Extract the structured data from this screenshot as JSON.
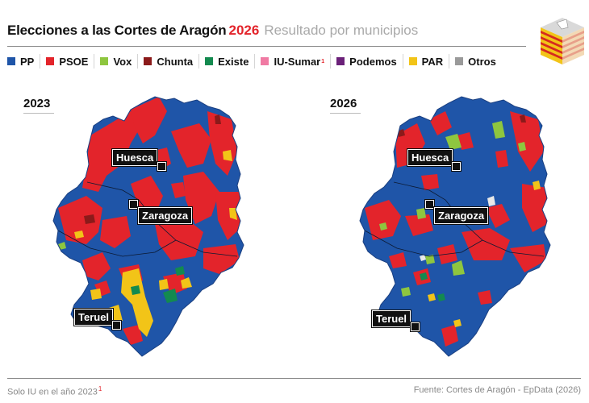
{
  "header": {
    "title": "Elecciones a las Cortes de Aragón",
    "title_year": "2026",
    "subtitle": "Resultado por municipios"
  },
  "legend": [
    {
      "label": "PP",
      "color": "#1f55a8"
    },
    {
      "label": "PSOE",
      "color": "#e3242b"
    },
    {
      "label": "Vox",
      "color": "#8ec63f"
    },
    {
      "label": "Chunta",
      "color": "#8b1a1a"
    },
    {
      "label": "Existe",
      "color": "#138a4f"
    },
    {
      "label": "IU-Sumar",
      "color": "#f07aa3",
      "footnote_mark": "1"
    },
    {
      "label": "Podemos",
      "color": "#6b2179"
    },
    {
      "label": "PAR",
      "color": "#f2c418"
    },
    {
      "label": "Otros",
      "color": "#9a9a9a"
    }
  ],
  "maps": [
    {
      "year": "2023",
      "cities": {
        "huesca": "Huesca",
        "zaragoza": "Zaragoza",
        "teruel": "Teruel"
      }
    },
    {
      "year": "2026",
      "cities": {
        "huesca": "Huesca",
        "zaragoza": "Zaragoza",
        "teruel": "Teruel"
      }
    }
  ],
  "footer": {
    "footnote": "Solo IU en el año 2023",
    "footnote_mark": "1",
    "source": "Fuente: Cortes de Aragón - EpData (2026)"
  }
}
